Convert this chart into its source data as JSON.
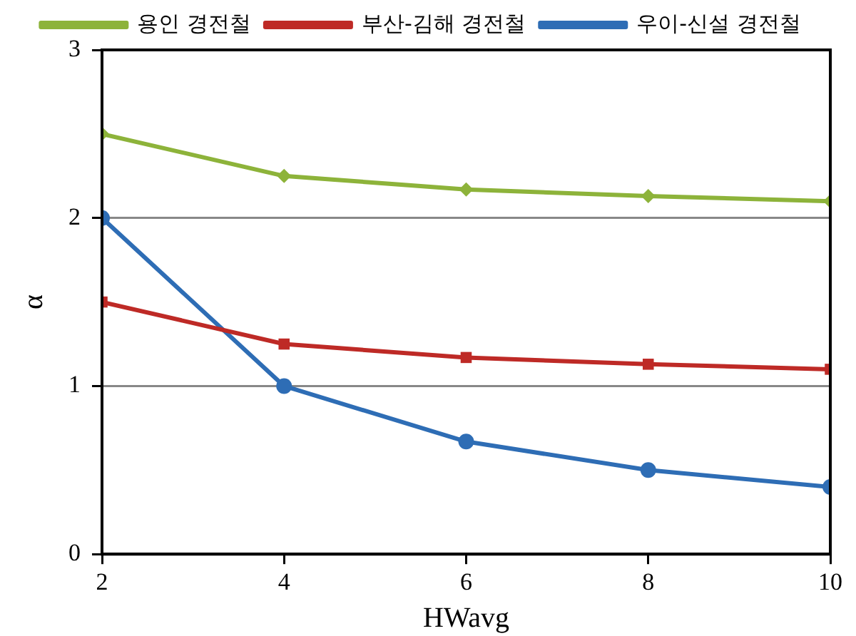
{
  "chart_data": {
    "type": "line",
    "xlabel": "HWavg",
    "ylabel": "α",
    "x": [
      2,
      4,
      6,
      8,
      10
    ],
    "series": [
      {
        "name": "용인 경전철",
        "color": "#8db33a",
        "marker": "diamond",
        "values": [
          2.5,
          2.25,
          2.17,
          2.13,
          2.1
        ]
      },
      {
        "name": "부산-김해 경전철",
        "color": "#be2a26",
        "marker": "square",
        "values": [
          1.5,
          1.25,
          1.17,
          1.13,
          1.1
        ]
      },
      {
        "name": "우이-신설 경전철",
        "color": "#2e6db5",
        "marker": "circle",
        "values": [
          2,
          1,
          0.67,
          0.5,
          0.4
        ]
      }
    ],
    "xlim": [
      2,
      10
    ],
    "xticks": [
      2,
      4,
      6,
      8,
      10
    ],
    "ylim": [
      0,
      3
    ],
    "yticks": [
      0,
      1,
      2,
      3
    ],
    "grid": "y",
    "legend": "top",
    "line_style": "solid"
  }
}
